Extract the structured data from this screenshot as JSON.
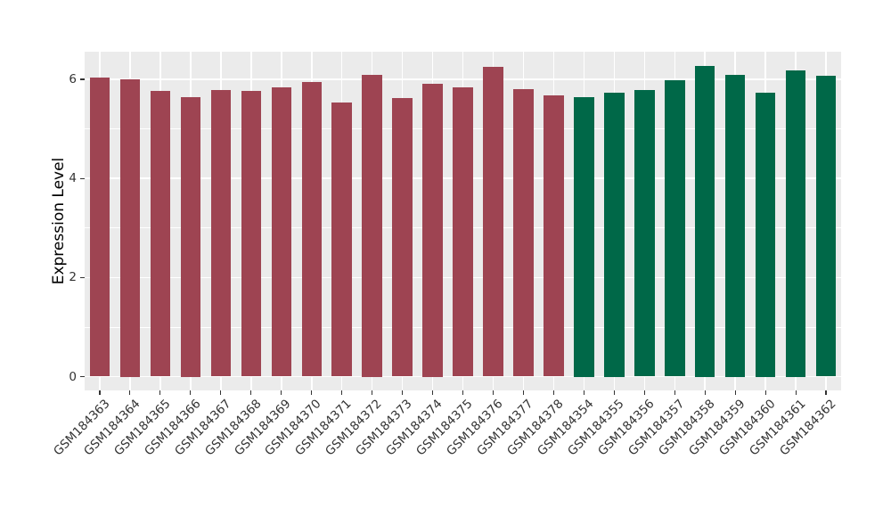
{
  "chart_data": {
    "type": "bar",
    "title": "",
    "xlabel": "",
    "ylabel": "Expression Level",
    "yticks": [
      0,
      2,
      4,
      6
    ],
    "ylim": [
      0,
      6.58
    ],
    "grid": "on",
    "legend": "none",
    "panel_bg": "#EBEBEB",
    "grid_color": "#FFFFFF",
    "categories": [
      "GSM184363",
      "GSM184364",
      "GSM184365",
      "GSM184366",
      "GSM184367",
      "GSM184368",
      "GSM184369",
      "GSM184370",
      "GSM184371",
      "GSM184372",
      "GSM184373",
      "GSM184374",
      "GSM184375",
      "GSM184376",
      "GSM184377",
      "GSM184378",
      "GSM184354",
      "GSM184355",
      "GSM184356",
      "GSM184357",
      "GSM184358",
      "GSM184359",
      "GSM184360",
      "GSM184361",
      "GSM184362"
    ],
    "values": [
      6.04,
      6.0,
      5.77,
      5.65,
      5.79,
      5.77,
      5.84,
      5.95,
      5.53,
      6.1,
      5.62,
      5.92,
      5.84,
      6.26,
      5.81,
      5.67,
      5.65,
      5.74,
      5.79,
      5.99,
      6.27,
      6.1,
      5.74,
      6.19,
      6.07
    ],
    "bar_colors": [
      "#9E4452",
      "#9E4452",
      "#9E4452",
      "#9E4452",
      "#9E4452",
      "#9E4452",
      "#9E4452",
      "#9E4452",
      "#9E4452",
      "#9E4452",
      "#9E4452",
      "#9E4452",
      "#9E4452",
      "#9E4452",
      "#9E4452",
      "#9E4452",
      "#006848",
      "#006848",
      "#006848",
      "#006848",
      "#006848",
      "#006848",
      "#006848",
      "#006848",
      "#006848"
    ]
  }
}
